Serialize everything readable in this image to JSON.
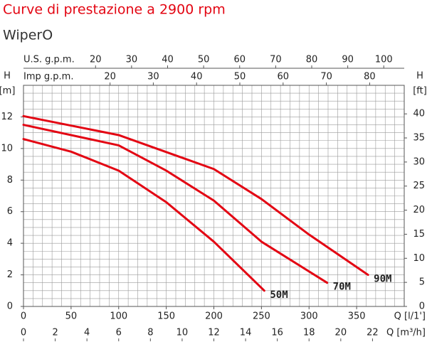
{
  "chart_data": {
    "type": "line",
    "title": "Curve di prestazione a 2900 rpm",
    "subtitle": "WiperO",
    "x_label": "Q [l/1']",
    "y_label": "H",
    "y_unit": "[m]",
    "y2_label": "H",
    "y2_unit": "[ft]",
    "xlim": [
      0,
      400
    ],
    "xticks": [
      0,
      50,
      100,
      150,
      200,
      250,
      300,
      350
    ],
    "ylim": [
      0,
      14
    ],
    "yticks": [
      0,
      2,
      4,
      6,
      8,
      10,
      12
    ],
    "y2lim": [
      0,
      45.93
    ],
    "y2ticks": [
      0,
      5,
      10,
      15,
      20,
      25,
      30,
      35,
      40
    ],
    "grid": true,
    "grid_x_step": 10,
    "grid_y_step": 0.5,
    "extra_x_axes": [
      {
        "label": "Q [m³/h]",
        "position": "bottom",
        "lim": [
          0,
          24
        ],
        "ticks": [
          0,
          2,
          4,
          6,
          8,
          10,
          12,
          14,
          16,
          18,
          20,
          22
        ]
      },
      {
        "label": "U.S. g.p.m.",
        "position": "top",
        "lim": [
          0,
          105.68
        ],
        "ticks": [
          20,
          30,
          40,
          50,
          60,
          70,
          80,
          90,
          100
        ]
      },
      {
        "label": "Imp g.p.m.",
        "position": "top",
        "lim": [
          0,
          87.99
        ],
        "ticks": [
          20,
          30,
          40,
          50,
          60,
          70,
          80
        ]
      }
    ],
    "series": [
      {
        "name": "50M",
        "color": "#e30613",
        "x": [
          0,
          50,
          100,
          150,
          200,
          253
        ],
        "values": [
          10.6,
          9.8,
          8.6,
          6.6,
          4.1,
          1.0
        ]
      },
      {
        "name": "70M",
        "color": "#e30613",
        "x": [
          0,
          100,
          150,
          200,
          250,
          319
        ],
        "values": [
          11.5,
          10.2,
          8.6,
          6.7,
          4.1,
          1.5
        ]
      },
      {
        "name": "90M",
        "color": "#e30613",
        "x": [
          0,
          100,
          200,
          250,
          300,
          362
        ],
        "values": [
          12.05,
          10.85,
          8.7,
          6.8,
          4.55,
          2.0
        ]
      }
    ]
  }
}
